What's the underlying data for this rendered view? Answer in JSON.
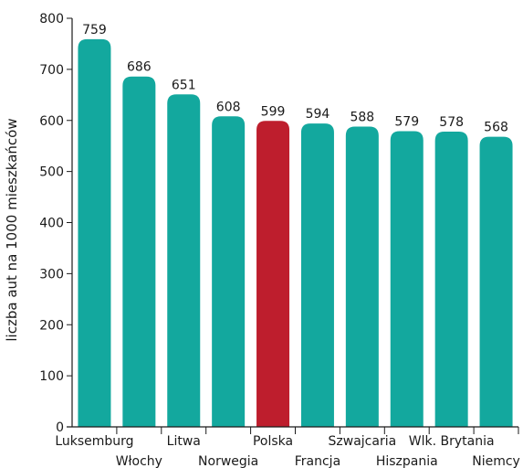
{
  "chart_data": {
    "type": "bar",
    "ylabel": "liczba aut na 1000 mieszkańców",
    "xlabel": "",
    "title": "",
    "ylim": [
      0,
      800
    ],
    "yticks": [
      0,
      100,
      200,
      300,
      400,
      500,
      600,
      700,
      800
    ],
    "categories": [
      "Luksemburg",
      "Włochy",
      "Litwa",
      "Norwegia",
      "Polska",
      "Francja",
      "Szwajcaria",
      "Hiszpania",
      "Wlk. Brytania",
      "Niemcy"
    ],
    "values": [
      759,
      686,
      651,
      608,
      599,
      594,
      588,
      579,
      578,
      568
    ],
    "bar_colors": [
      "#13a89e",
      "#13a89e",
      "#13a89e",
      "#13a89e",
      "#be1e2d",
      "#13a89e",
      "#13a89e",
      "#13a89e",
      "#13a89e",
      "#13a89e"
    ],
    "grid": false,
    "legend": "none"
  }
}
